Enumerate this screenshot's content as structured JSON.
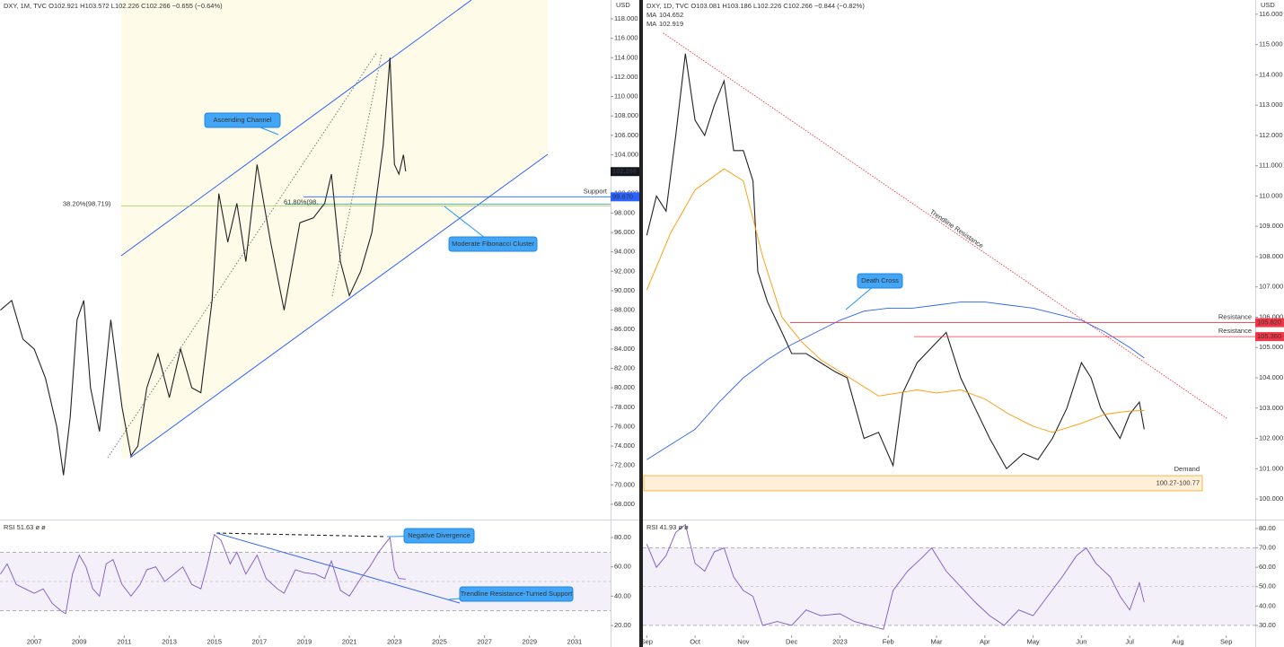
{
  "chart_data": [
    {
      "type": "line",
      "header": "DXY, 1M, TVC  O102.921  H103.572  L102.226  C102.266  −0.655 (−0.64%)",
      "unit": "USD",
      "xlim": [
        2005.48,
        2032.6
      ],
      "ylim": [
        66.52,
        119.94
      ],
      "yticks": [
        {
          "value": 68,
          "label": "68.000"
        },
        {
          "value": 70,
          "label": "70.000"
        },
        {
          "value": 72,
          "label": "72.000"
        },
        {
          "value": 74,
          "label": "74.000"
        },
        {
          "value": 76,
          "label": "76.000"
        },
        {
          "value": 78,
          "label": "78.000"
        },
        {
          "value": 80,
          "label": "80.000"
        },
        {
          "value": 82,
          "label": "82.000"
        },
        {
          "value": 84,
          "label": "84.000"
        },
        {
          "value": 86,
          "label": "86.000"
        },
        {
          "value": 88,
          "label": "88.000"
        },
        {
          "value": 90,
          "label": "90.000"
        },
        {
          "value": 92,
          "label": "92.000"
        },
        {
          "value": 94,
          "label": "94.000"
        },
        {
          "value": 96,
          "label": "96.000"
        },
        {
          "value": 98,
          "label": "98.000"
        },
        {
          "value": 100,
          "label": "100.000"
        },
        {
          "value": 102,
          "label": "102.000"
        },
        {
          "value": 104,
          "label": "104.000"
        },
        {
          "value": 106,
          "label": "106.000"
        },
        {
          "value": 108,
          "label": "108.000"
        },
        {
          "value": 110,
          "label": "110.000"
        },
        {
          "value": 112,
          "label": "112.000"
        },
        {
          "value": 114,
          "label": "114.000"
        },
        {
          "value": 116,
          "label": "116.000"
        },
        {
          "value": 118,
          "label": "118.000"
        }
      ],
      "series": [
        {
          "color": "#222222",
          "x": [
            2005.5,
            2006,
            2006.5,
            2007,
            2007.5,
            2008,
            2008.3,
            2008.6,
            2008.9,
            2009.2,
            2009.5,
            2009.9,
            2010.4,
            2010.9,
            2011.3,
            2011.6,
            2012,
            2012.5,
            2013,
            2013.5,
            2014,
            2014.4,
            2014.9,
            2015.2,
            2015.6,
            2016,
            2016.4,
            2016.9,
            2017.5,
            2018.1,
            2018.8,
            2019.4,
            2019.9,
            2020.2,
            2020.6,
            2021,
            2021.5,
            2022,
            2022.5,
            2022.8,
            2023,
            2023.2,
            2023.4,
            2023.5
          ],
          "values": [
            88,
            89,
            85,
            84,
            81,
            76,
            71,
            77,
            87,
            89,
            80,
            75.5,
            87,
            78,
            73,
            74,
            80,
            83.5,
            79,
            84,
            80,
            79.5,
            89,
            100,
            95,
            99,
            93,
            103,
            95,
            88,
            97,
            97.5,
            99,
            102,
            93,
            89.5,
            92,
            96,
            105,
            114,
            103,
            102,
            104,
            102.3
          ]
        }
      ],
      "price_label": {
        "value": 102.266,
        "label": "102.266"
      },
      "levels": [
        {
          "value": 99.67,
          "label": "99.670",
          "text": "Support"
        }
      ],
      "fib": [
        {
          "value": 98.719,
          "label": "38.20%(98.719)"
        },
        {
          "value": 98.9,
          "label": "61.80%(98."
        }
      ],
      "annotations": [
        "Ascending Channel",
        "Moderate Fibonacci Cluster"
      ]
    },
    {
      "type": "line",
      "header": "RSI  51.63  ø  ø",
      "xlim": [
        2005.48,
        2032.6
      ],
      "ylim": [
        14.5,
        91.0
      ],
      "xticks": [
        2007,
        2009,
        2011,
        2013,
        2015,
        2017,
        2019,
        2021,
        2023,
        2025,
        2027,
        2029,
        2031
      ],
      "yticks": [
        {
          "value": 20,
          "label": "20.00"
        },
        {
          "value": 40,
          "label": "40.00"
        },
        {
          "value": 60,
          "label": "60.00"
        },
        {
          "value": 80,
          "label": "80.00"
        }
      ],
      "band": [
        30,
        70
      ],
      "midline": 50,
      "series": [
        {
          "color": "#7e57c2",
          "x": [
            2005.5,
            2005.8,
            2006.2,
            2006.6,
            2007,
            2007.4,
            2007.8,
            2008.2,
            2008.4,
            2008.7,
            2009,
            2009.3,
            2009.6,
            2009.9,
            2010.2,
            2010.5,
            2010.9,
            2011.3,
            2011.7,
            2012,
            2012.4,
            2012.8,
            2013.2,
            2013.6,
            2014,
            2014.4,
            2014.7,
            2015,
            2015.3,
            2015.7,
            2016,
            2016.4,
            2016.9,
            2017.3,
            2017.8,
            2018.1,
            2018.6,
            2019,
            2019.5,
            2019.9,
            2020.2,
            2020.6,
            2021,
            2021.5,
            2021.9,
            2022.3,
            2022.8,
            2023,
            2023.2,
            2023.5
          ],
          "values": [
            55,
            62,
            48,
            45,
            42,
            45,
            35,
            30,
            28,
            55,
            68,
            60,
            45,
            40,
            62,
            65,
            48,
            40,
            48,
            58,
            60,
            50,
            55,
            60,
            48,
            45,
            62,
            82,
            78,
            62,
            70,
            55,
            68,
            52,
            45,
            42,
            58,
            56,
            55,
            52,
            64,
            44,
            40,
            52,
            60,
            70,
            80,
            58,
            52,
            51.63
          ]
        }
      ],
      "annotations": [
        "Negative Divergence",
        "Trendline Resistance-Turned Support"
      ]
    },
    {
      "type": "line",
      "header": "DXY, 1D, TVC  O103.081  H103.186  L102.226  C102.266  −0.844 (−0.82%)",
      "unit": "USD",
      "xlim": [
        -0.08,
        12.6
      ],
      "ylim": [
        99.35,
        116.47
      ],
      "yticks": [
        {
          "value": 100,
          "label": "100.000"
        },
        {
          "value": 101,
          "label": "101.000"
        },
        {
          "value": 102,
          "label": "102.000"
        },
        {
          "value": 103,
          "label": "103.000"
        },
        {
          "value": 104,
          "label": "104.000"
        },
        {
          "value": 105,
          "label": "105.000"
        },
        {
          "value": 106,
          "label": "106.000"
        },
        {
          "value": 107,
          "label": "107.000"
        },
        {
          "value": 108,
          "label": "108.000"
        },
        {
          "value": 109,
          "label": "109.000"
        },
        {
          "value": 110,
          "label": "110.000"
        },
        {
          "value": 111,
          "label": "111.000"
        },
        {
          "value": 112,
          "label": "112.000"
        },
        {
          "value": 113,
          "label": "113.000"
        },
        {
          "value": 114,
          "label": "114.000"
        },
        {
          "value": 115,
          "label": "115.000"
        },
        {
          "value": 116,
          "label": "116.000"
        }
      ],
      "series": [
        {
          "color": "#222222",
          "x": [
            0,
            0.2,
            0.4,
            0.6,
            0.8,
            1.0,
            1.2,
            1.4,
            1.6,
            1.8,
            2.0,
            2.2,
            2.3,
            2.5,
            2.8,
            3.0,
            3.3,
            3.6,
            3.9,
            4.15,
            4.5,
            4.8,
            5.1,
            5.3,
            5.6,
            5.9,
            6.2,
            6.5,
            6.8,
            7.1,
            7.45,
            7.8,
            8.1,
            8.4,
            8.7,
            9.0,
            9.2,
            9.4,
            9.6,
            9.8,
            10.0,
            10.2,
            10.3
          ],
          "values": [
            108.7,
            110,
            109.5,
            112,
            114.7,
            112.5,
            112,
            113,
            113.8,
            111.5,
            111.5,
            110.5,
            107.5,
            106.5,
            105.5,
            104.8,
            104.8,
            104.5,
            104.2,
            104,
            102,
            102.2,
            101.1,
            103.5,
            104.5,
            105,
            105.5,
            104,
            103,
            102,
            101,
            101.5,
            101.3,
            102,
            103,
            104.5,
            104,
            103,
            102.5,
            102,
            102.8,
            103.2,
            102.3
          ]
        },
        {
          "name": "MA",
          "color": "#2962ff",
          "legend_value": 104.652,
          "x": [
            0,
            0.5,
            1.0,
            1.5,
            2.0,
            2.5,
            3.0,
            3.5,
            4.0,
            4.5,
            5.0,
            5.5,
            6.0,
            6.5,
            7.0,
            7.5,
            8.0,
            8.5,
            9.0,
            9.5,
            10.0,
            10.3
          ],
          "values": [
            101.3,
            101.8,
            102.3,
            103.2,
            104.0,
            104.6,
            105.1,
            105.5,
            105.9,
            106.2,
            106.3,
            106.3,
            106.4,
            106.5,
            106.5,
            106.4,
            106.3,
            106.1,
            105.9,
            105.5,
            105.0,
            104.652
          ]
        },
        {
          "name": "MA",
          "color": "#ff9800",
          "legend_value": 102.919,
          "x": [
            0,
            0.5,
            1.0,
            1.6,
            2.0,
            2.4,
            2.8,
            3.2,
            3.6,
            4.2,
            4.8,
            5.2,
            5.6,
            6.0,
            6.5,
            7.0,
            7.5,
            8.0,
            8.4,
            9.0,
            9.5,
            10.0,
            10.3
          ],
          "values": [
            106.9,
            108.8,
            110.2,
            110.9,
            110.5,
            108,
            106,
            105.2,
            104.6,
            104,
            103.4,
            103.5,
            103.6,
            103.5,
            103.6,
            103.3,
            102.8,
            102.4,
            102.2,
            102.5,
            102.8,
            102.9,
            102.919
          ]
        }
      ],
      "levels": [
        {
          "value": 105.82,
          "label": "105.820",
          "text": "Resistance"
        },
        {
          "value": 105.36,
          "label": "105.360",
          "text": "Resistance"
        }
      ],
      "trendline": {
        "x": [
          0.34,
          12.02
        ],
        "values": [
          115.38,
          102.65
        ],
        "text": "Trendline Resistance"
      },
      "demand": {
        "low": 100.27,
        "high": 100.77,
        "label": "100.27-100.77",
        "text": "Demand"
      },
      "annotations": [
        "Death Cross"
      ]
    },
    {
      "type": "line",
      "header": "RSI  41.93  ø  ø",
      "xlim": [
        -0.08,
        12.6
      ],
      "ylim": [
        25.8,
        83.7
      ],
      "xticks": [
        {
          "value": 0,
          "label": "Sep"
        },
        {
          "value": 1,
          "label": "Oct"
        },
        {
          "value": 2,
          "label": "Nov"
        },
        {
          "value": 3,
          "label": "Dec"
        },
        {
          "value": 4,
          "label": "2023"
        },
        {
          "value": 5,
          "label": "Feb"
        },
        {
          "value": 6,
          "label": "Mar"
        },
        {
          "value": 7,
          "label": "Apr"
        },
        {
          "value": 8,
          "label": "May"
        },
        {
          "value": 9,
          "label": "Jun"
        },
        {
          "value": 10,
          "label": "Jul"
        },
        {
          "value": 11,
          "label": "Aug"
        },
        {
          "value": 12,
          "label": "Sep"
        }
      ],
      "yticks": [
        {
          "value": 30,
          "label": "30.00"
        },
        {
          "value": 40,
          "label": "40.00"
        },
        {
          "value": 50,
          "label": "50.00"
        },
        {
          "value": 60,
          "label": "60.00"
        },
        {
          "value": 70,
          "label": "70.00"
        },
        {
          "value": 80,
          "label": "80.00"
        }
      ],
      "band": [
        30,
        70
      ],
      "midline": 50,
      "series": [
        {
          "color": "#7e57c2",
          "x": [
            0,
            0.2,
            0.4,
            0.6,
            0.8,
            1.0,
            1.2,
            1.4,
            1.6,
            1.8,
            2.0,
            2.2,
            2.4,
            2.7,
            3.0,
            3.3,
            3.6,
            4.0,
            4.3,
            4.6,
            4.9,
            5.1,
            5.4,
            5.7,
            5.9,
            6.2,
            6.5,
            6.8,
            7.1,
            7.4,
            7.7,
            8.0,
            8.3,
            8.6,
            8.9,
            9.1,
            9.3,
            9.6,
            9.8,
            10.0,
            10.2,
            10.3
          ],
          "values": [
            72,
            60,
            66,
            78,
            82,
            62,
            58,
            68,
            70,
            55,
            48,
            45,
            30,
            32,
            30,
            38,
            35,
            36,
            32,
            30,
            28,
            48,
            58,
            65,
            70,
            58,
            50,
            42,
            35,
            30,
            38,
            35,
            45,
            55,
            66,
            70,
            62,
            55,
            45,
            38,
            52,
            41.93
          ]
        }
      ]
    }
  ]
}
